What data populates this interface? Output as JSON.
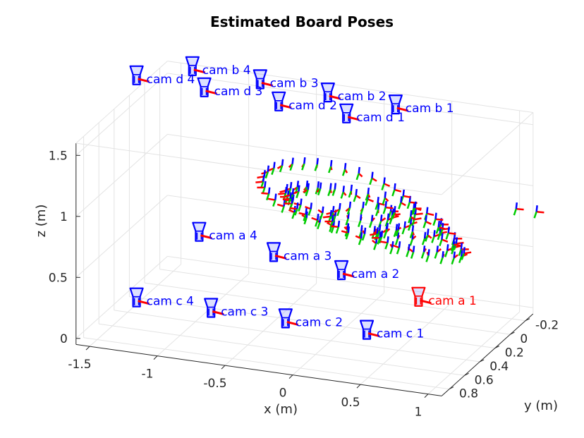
{
  "chart_data": {
    "type": "scatter3d",
    "title": "Estimated Board Poses",
    "xlabel": "x (m)",
    "ylabel": "y (m)",
    "zlabel": "z (m)",
    "x_ticks": [
      "-1.5",
      "-1",
      "-0.5",
      "0",
      "0.5",
      "1"
    ],
    "y_ticks": [
      "-0.2",
      "0",
      "0.2",
      "0.4",
      "0.6",
      "0.8"
    ],
    "z_ticks": [
      "0",
      "0.5",
      "1",
      "1.5"
    ],
    "xlim": [
      -1.6,
      1.1
    ],
    "ylim": [
      -0.3,
      0.9
    ],
    "zlim": [
      -0.05,
      1.6
    ],
    "grid": true,
    "colors": {
      "camera": "#0000ff",
      "reference_camera": "#ff0000",
      "axis_x": "#ff0000",
      "axis_y": "#00cc00",
      "axis_z": "#0000ff"
    },
    "cameras": [
      {
        "name": "cam a 1",
        "x": 0.62,
        "y": 0.35,
        "z": 0.35,
        "reference": true
      },
      {
        "name": "cam a 2",
        "x": 0.05,
        "y": 0.35,
        "z": 0.48,
        "reference": false
      },
      {
        "name": "cam a 3",
        "x": -0.45,
        "y": 0.35,
        "z": 0.55,
        "reference": false
      },
      {
        "name": "cam a 4",
        "x": -1.0,
        "y": 0.35,
        "z": 0.63,
        "reference": false
      },
      {
        "name": "cam b 1",
        "x": 0.45,
        "y": 0.35,
        "z": 1.9,
        "reference": false
      },
      {
        "name": "cam b 2",
        "x": -0.05,
        "y": 0.35,
        "z": 1.92,
        "reference": false
      },
      {
        "name": "cam b 3",
        "x": -0.55,
        "y": 0.35,
        "z": 1.95,
        "reference": false
      },
      {
        "name": "cam b 4",
        "x": -1.05,
        "y": 0.35,
        "z": 1.98,
        "reference": false
      },
      {
        "name": "cam c 1",
        "x": 0.35,
        "y": 0.55,
        "z": 0.15,
        "reference": false
      },
      {
        "name": "cam c 2",
        "x": -0.25,
        "y": 0.55,
        "z": 0.15,
        "reference": false
      },
      {
        "name": "cam c 3",
        "x": -0.8,
        "y": 0.55,
        "z": 0.15,
        "reference": false
      },
      {
        "name": "cam c 4",
        "x": -1.35,
        "y": 0.55,
        "z": 0.15,
        "reference": false
      },
      {
        "name": "cam d 1",
        "x": 0.2,
        "y": 0.55,
        "z": 1.9,
        "reference": false
      },
      {
        "name": "cam d 2",
        "x": -0.3,
        "y": 0.55,
        "z": 1.92,
        "reference": false
      },
      {
        "name": "cam d 3",
        "x": -0.85,
        "y": 0.55,
        "z": 1.95,
        "reference": false
      },
      {
        "name": "cam d 4",
        "x": -1.35,
        "y": 0.55,
        "z": 1.97,
        "reference": false
      }
    ]
  }
}
